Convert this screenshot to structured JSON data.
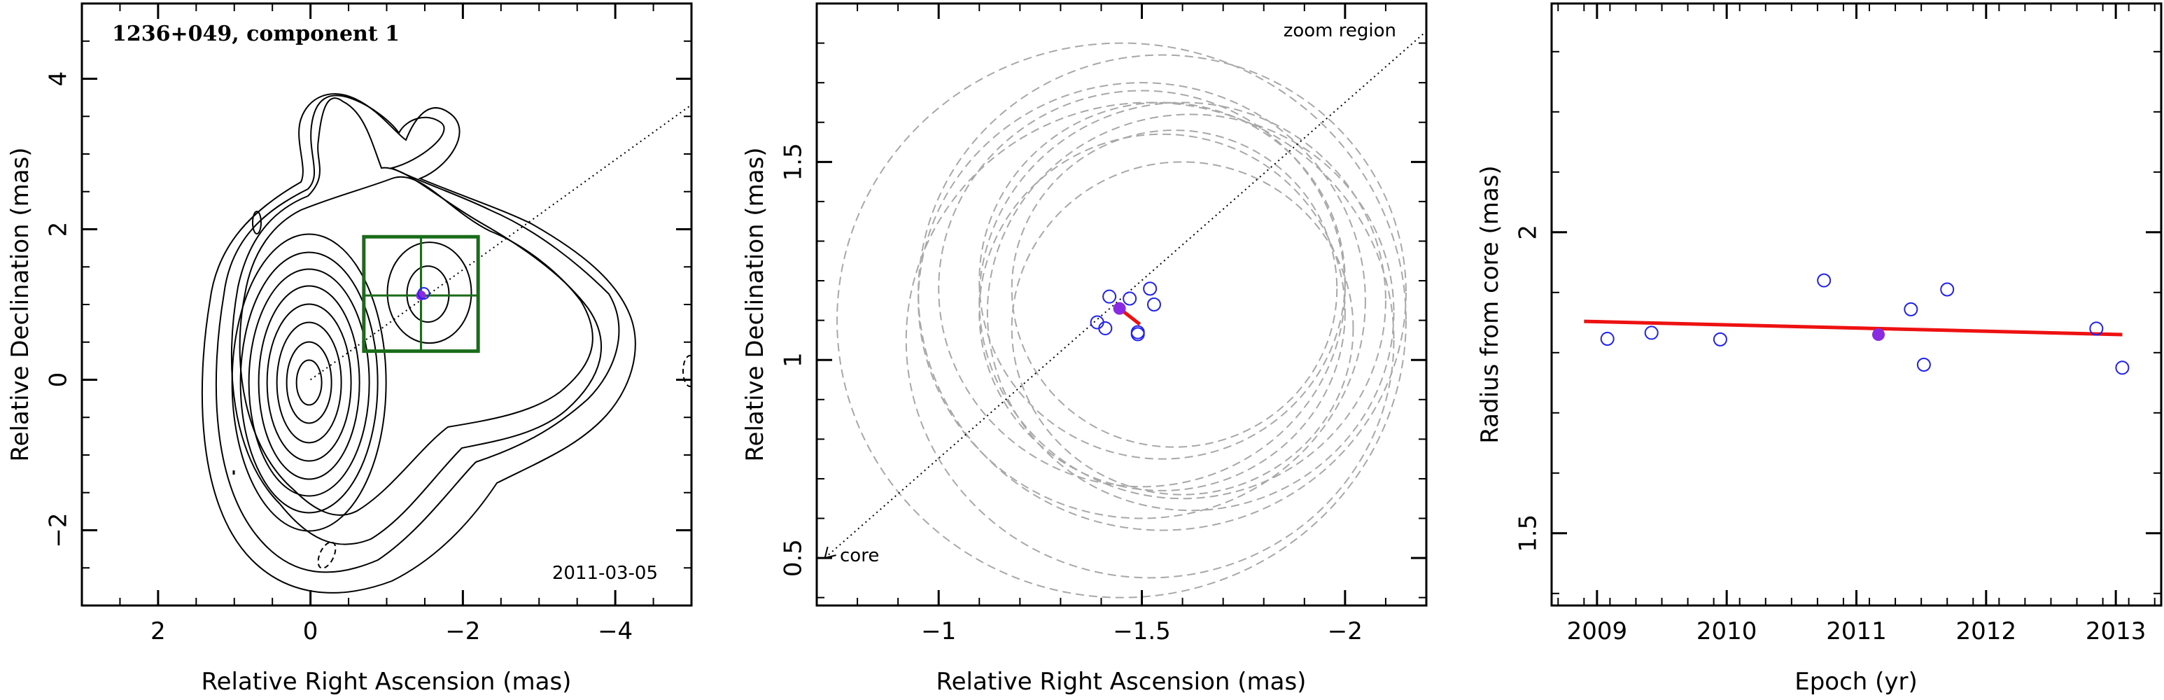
{
  "chart_data": [
    {
      "type": "contour",
      "title": "1236+049, component 1",
      "xlabel": "Relative Right Ascension (mas)",
      "ylabel": "Relative Declination (mas)",
      "xlim": [
        3,
        -5
      ],
      "ylim": [
        -3,
        5
      ],
      "xticks": [
        2,
        0,
        -2,
        -4
      ],
      "xtick_labels": [
        "2",
        "0",
        "−2",
        "−4"
      ],
      "yticks": [
        -2,
        0,
        2,
        4
      ],
      "ytick_labels": [
        "−2",
        "0",
        "2",
        "4"
      ],
      "annotation": "2011-03-05",
      "component_position": {
        "x": -1.45,
        "y": 1.12
      },
      "zoom_box": {
        "x": [
          -0.7,
          -2.2
        ],
        "y": [
          0.38,
          1.9
        ]
      },
      "jet_direction_line": {
        "x": [
          0,
          -5.2
        ],
        "y": [
          0,
          3.8
        ]
      },
      "colors": {
        "box": "#1a6b1a",
        "component": "#2222ee",
        "fit": "#ee1111",
        "points": "#1a1aee",
        "filled": "#8a2be2"
      }
    },
    {
      "type": "scatter",
      "title": "",
      "xlabel": "Relative Right Ascension (mas)",
      "ylabel": "Relative Declination (mas)",
      "xlim": [
        -0.7,
        -2.2
      ],
      "ylim": [
        0.38,
        1.9
      ],
      "xticks": [
        -1,
        -1.5,
        -2
      ],
      "xtick_labels": [
        "−1",
        "−1.5",
        "−2"
      ],
      "yticks": [
        0.5,
        1,
        1.5
      ],
      "ytick_labels": [
        "0.5",
        "1",
        "1.5"
      ],
      "annotations": [
        "zoom region",
        "core"
      ],
      "points": [
        {
          "x": -1.42,
          "y": 1.16
        },
        {
          "x": -1.47,
          "y": 1.155
        },
        {
          "x": -1.52,
          "y": 1.18
        },
        {
          "x": -1.53,
          "y": 1.14
        },
        {
          "x": -1.39,
          "y": 1.095
        },
        {
          "x": -1.41,
          "y": 1.08
        },
        {
          "x": -1.49,
          "y": 1.065
        },
        {
          "x": -1.49,
          "y": 1.07
        }
      ],
      "filled_point": {
        "x": -1.445,
        "y": 1.13
      },
      "velocity_vector": {
        "x": [
          -1.445,
          -1.495
        ],
        "y": [
          1.13,
          1.09
        ]
      },
      "position_ellipses": [
        {
          "cx": -1.5,
          "cy": 1.18,
          "r": 0.5
        },
        {
          "cx": -1.55,
          "cy": 1.17,
          "r": 0.6
        },
        {
          "cx": -1.5,
          "cy": 1.15,
          "r": 0.55
        },
        {
          "cx": -1.6,
          "cy": 1.15,
          "r": 0.5
        },
        {
          "cx": -1.55,
          "cy": 1.12,
          "r": 0.45
        },
        {
          "cx": -1.45,
          "cy": 1.1,
          "r": 0.7
        },
        {
          "cx": -1.6,
          "cy": 1.08,
          "r": 0.42
        },
        {
          "cx": -1.62,
          "cy": 1.12,
          "r": 0.5
        },
        {
          "cx": -1.58,
          "cy": 1.18,
          "r": 0.4
        },
        {
          "cx": -1.52,
          "cy": 1.05,
          "r": 0.6
        },
        {
          "cx": -1.55,
          "cy": 1.2,
          "r": 0.45
        }
      ]
    },
    {
      "type": "scatter",
      "title": "",
      "xlabel": "Epoch (yr)",
      "ylabel": "Radius from core (mas)",
      "xlim": [
        2008.65,
        2013.35
      ],
      "ylim": [
        1.38,
        2.38
      ],
      "xticks": [
        2009,
        2010,
        2011,
        2012,
        2013
      ],
      "xtick_labels": [
        "2009",
        "2010",
        "2011",
        "2012",
        "2013"
      ],
      "yticks": [
        1.5,
        2
      ],
      "ytick_labels": [
        "1.5",
        "2"
      ],
      "points": [
        {
          "x": 2009.08,
          "y": 1.823
        },
        {
          "x": 2009.42,
          "y": 1.833
        },
        {
          "x": 2009.95,
          "y": 1.822
        },
        {
          "x": 2010.75,
          "y": 1.92
        },
        {
          "x": 2011.42,
          "y": 1.872
        },
        {
          "x": 2011.52,
          "y": 1.78
        },
        {
          "x": 2011.7,
          "y": 1.905
        },
        {
          "x": 2012.85,
          "y": 1.84
        },
        {
          "x": 2013.05,
          "y": 1.775
        }
      ],
      "filled_point": {
        "x": 2011.17,
        "y": 1.83
      },
      "fit_line": {
        "x": [
          2008.9,
          2013.05
        ],
        "y": [
          1.852,
          1.83
        ]
      }
    }
  ]
}
